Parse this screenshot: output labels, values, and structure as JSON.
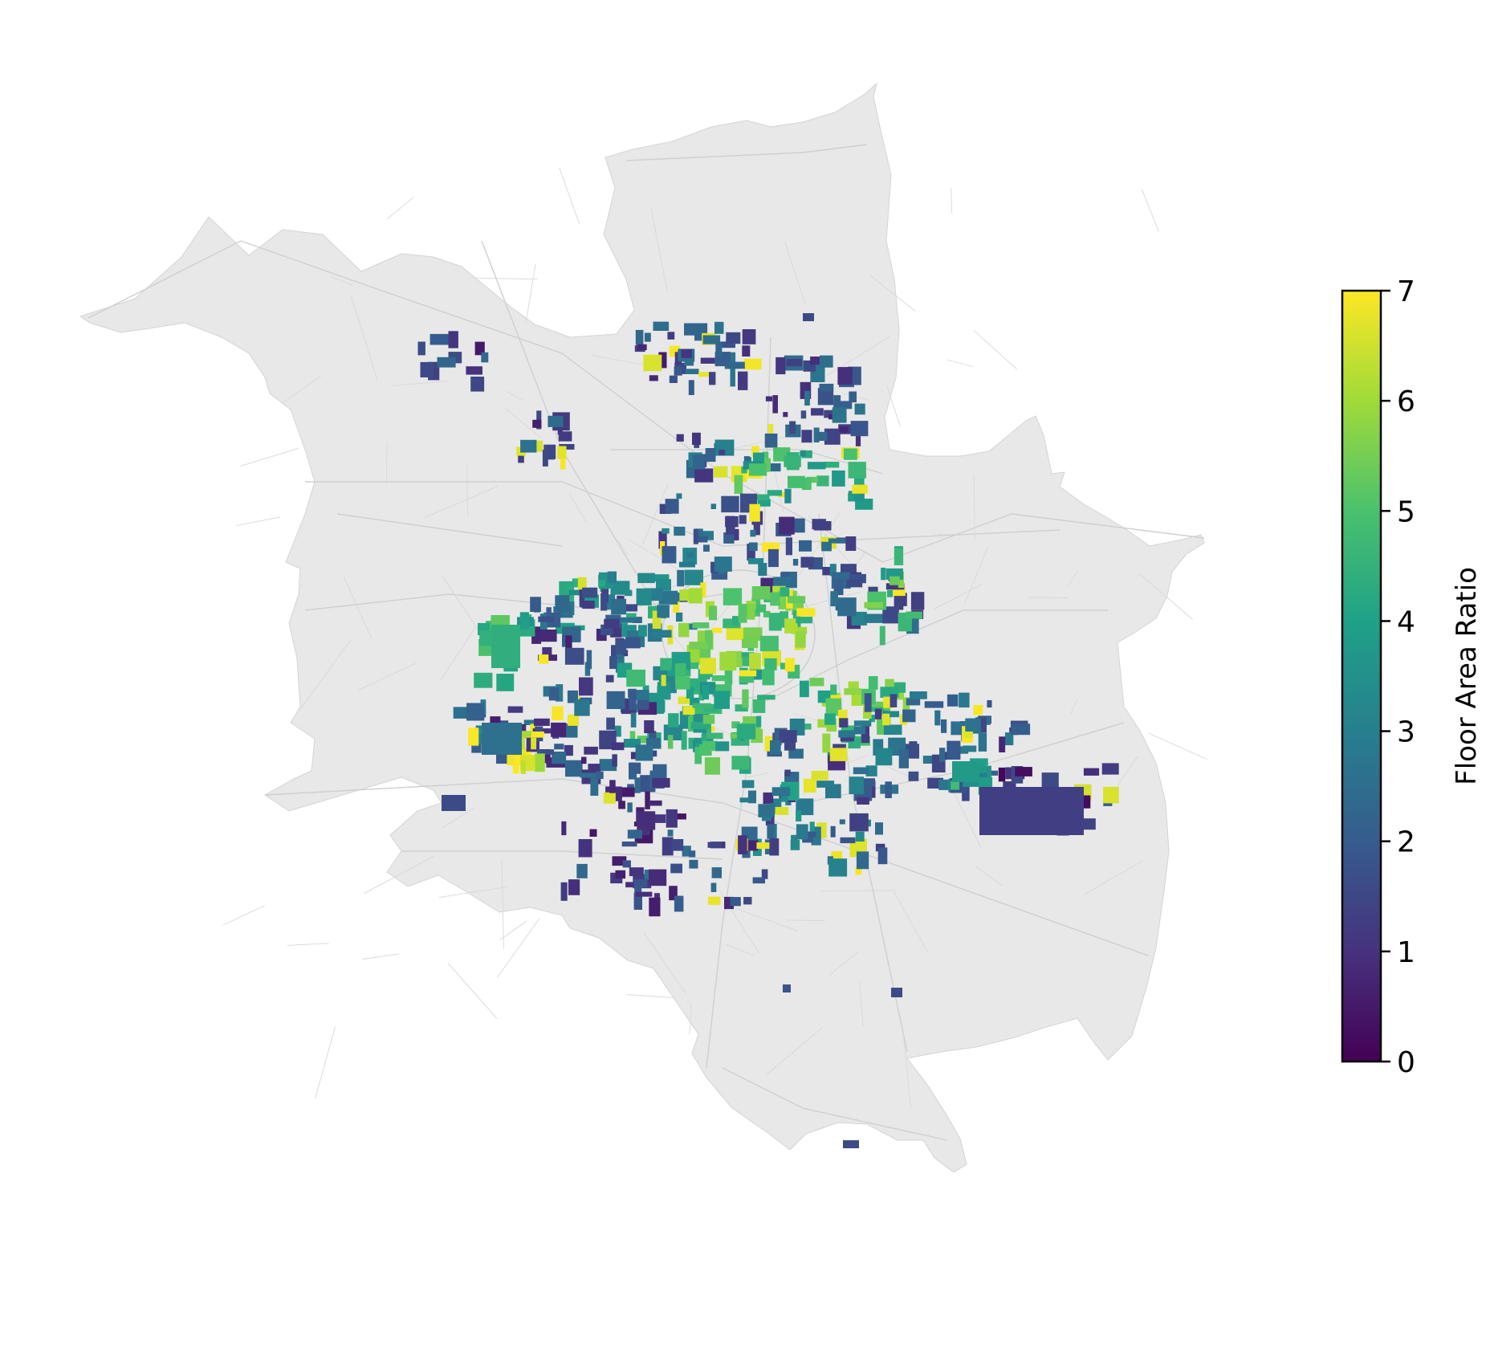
{
  "map": {
    "base_fill": "#e8e8e8",
    "road_color": "#cfcfcf",
    "colormap": "viridis"
  },
  "colorbar": {
    "label": "Floor Area Ratio",
    "min": 0,
    "max": 7,
    "ticks": [
      "0",
      "1",
      "2",
      "3",
      "4",
      "5",
      "6",
      "7"
    ],
    "stops": [
      "#440154",
      "#46327e",
      "#365c8d",
      "#277f8e",
      "#1fa187",
      "#4ac16d",
      "#a0da39",
      "#fde725"
    ]
  }
}
